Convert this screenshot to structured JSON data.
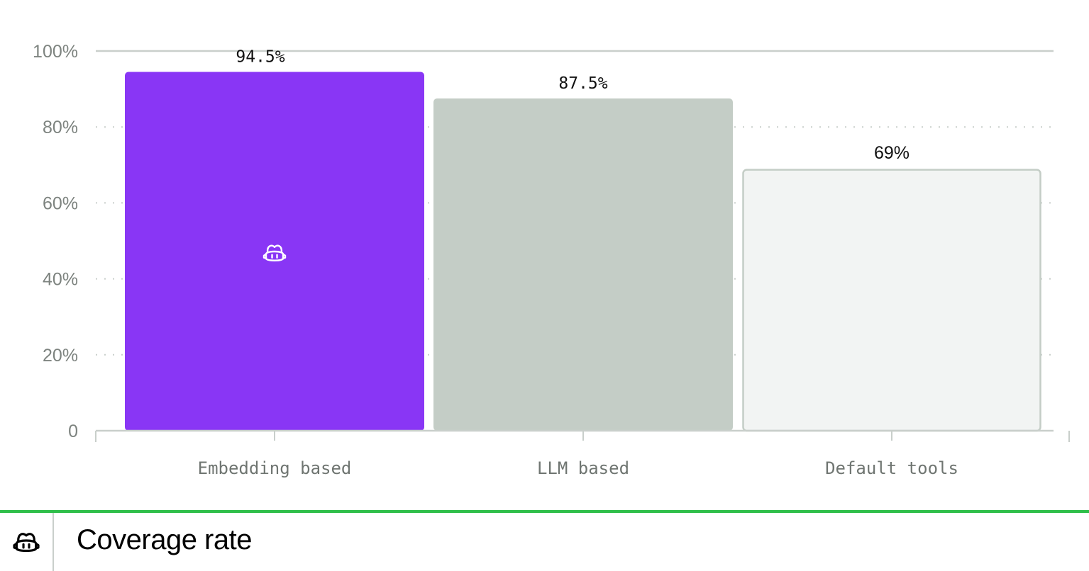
{
  "chart_data": {
    "type": "bar",
    "categories": [
      "Embedding based",
      "LLM based",
      "Default tools"
    ],
    "values": [
      94.5,
      87.5,
      69
    ],
    "value_labels": [
      "94.5%",
      "87.5%",
      "69%"
    ],
    "yticks": [
      "0",
      "20%",
      "40%",
      "60%",
      "80%",
      "100%"
    ],
    "ylim": [
      0,
      100
    ],
    "grid": true,
    "colors": {
      "bars": [
        "#8936f5",
        "#c4cdc6",
        "#f2f4f3"
      ],
      "bar_strokes": [
        "#8936f5",
        "#c4cdc6",
        "#c4cdc6"
      ],
      "grid": "#c9cfcb",
      "axis": "#c9cfcb"
    },
    "highlight_icon": "copilot-icon"
  },
  "footer": {
    "icon": "copilot-icon",
    "title": "Coverage rate",
    "accent_color": "#2fbf4a"
  }
}
